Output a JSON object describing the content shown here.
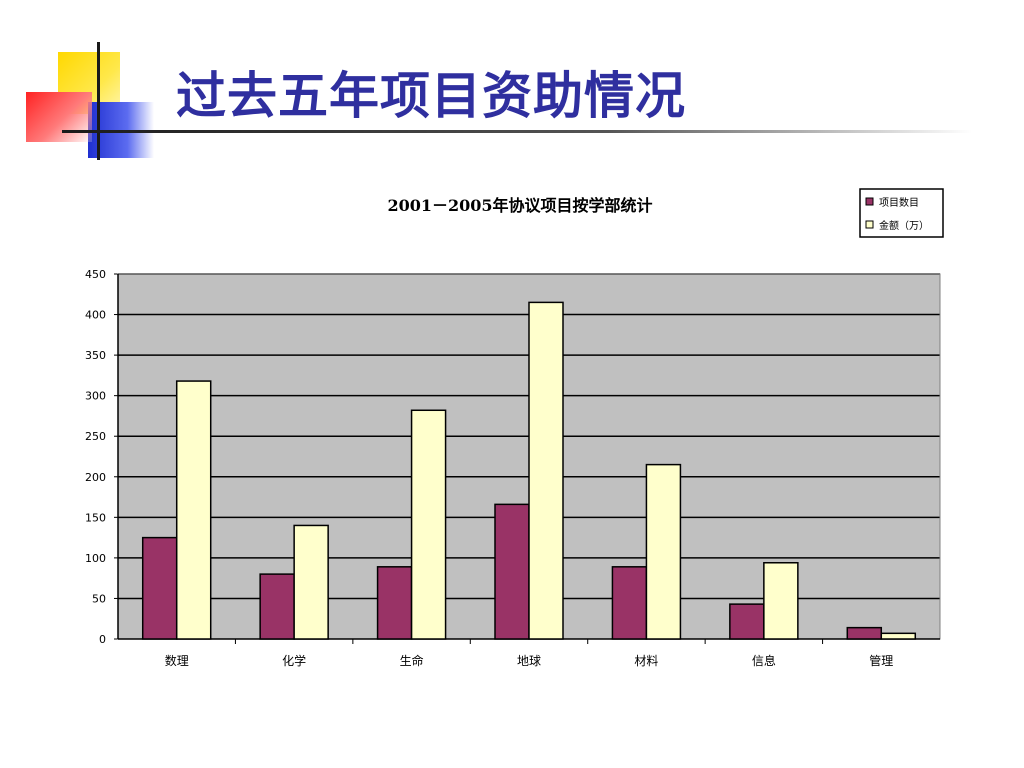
{
  "slide": {
    "title": "过去五年项目资助情况"
  },
  "colors": {
    "title": "#2f2f9f",
    "plot_bg": "#c0c0c0",
    "series1": "#993366",
    "series2": "#ffffcc"
  },
  "chart_data": {
    "type": "bar",
    "title": "2001－2005年协议项目按学部统计",
    "xlabel": "",
    "ylabel": "",
    "ylim": [
      0,
      450
    ],
    "ytick_step": 50,
    "grid": true,
    "legend_placement": "top-right",
    "categories": [
      "数理",
      "化学",
      "生命",
      "地球",
      "材料",
      "信息",
      "管理"
    ],
    "series": [
      {
        "name": "项目数目",
        "values": [
          125,
          80,
          89,
          166,
          89,
          43,
          14
        ]
      },
      {
        "name": "金额（万）",
        "values": [
          318,
          140,
          282,
          415,
          215,
          94,
          7
        ]
      }
    ]
  }
}
